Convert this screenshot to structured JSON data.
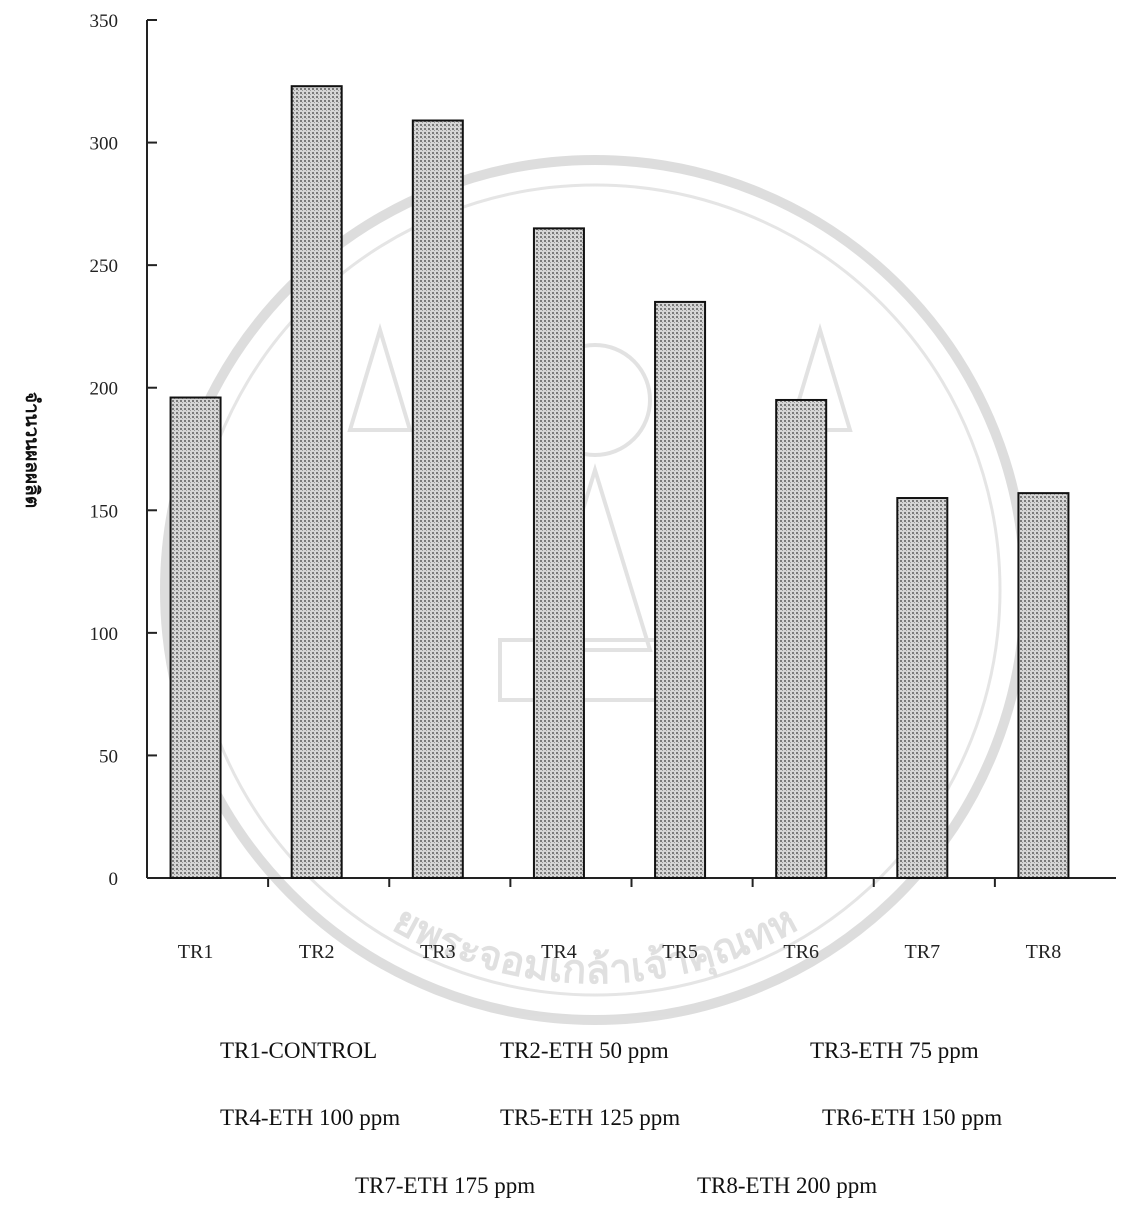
{
  "chart_data": {
    "type": "bar",
    "categories": [
      "TR1",
      "TR2",
      "TR3",
      "TR4",
      "TR5",
      "TR6",
      "TR7",
      "TR8"
    ],
    "values": [
      196,
      323,
      309,
      265,
      235,
      195,
      155,
      157
    ],
    "title": "",
    "xlabel": "",
    "ylabel": "จำนวนผลผลิต",
    "ylim": [
      0,
      350
    ],
    "yticks": [
      0,
      50,
      100,
      150,
      200,
      250,
      300,
      350
    ],
    "grid": false,
    "bar_color": "#a9a9a9",
    "bar_edge_color": "#111111",
    "legend_entries": [
      "TR1-CONTROL",
      "TR2-ETH 50 ppm",
      "TR3-ETH 75 ppm",
      "TR4-ETH 100 ppm",
      "TR5-ETH 125 ppm",
      "TR6-ETH 150 ppm",
      "TR7-ETH 175 ppm",
      "TR8-ETH 200 ppm"
    ],
    "legend_placement": "bottom"
  },
  "watermark": {
    "type": "university-seal",
    "text": "ยพระจอมเกล้าเจ้าคุณทห"
  }
}
